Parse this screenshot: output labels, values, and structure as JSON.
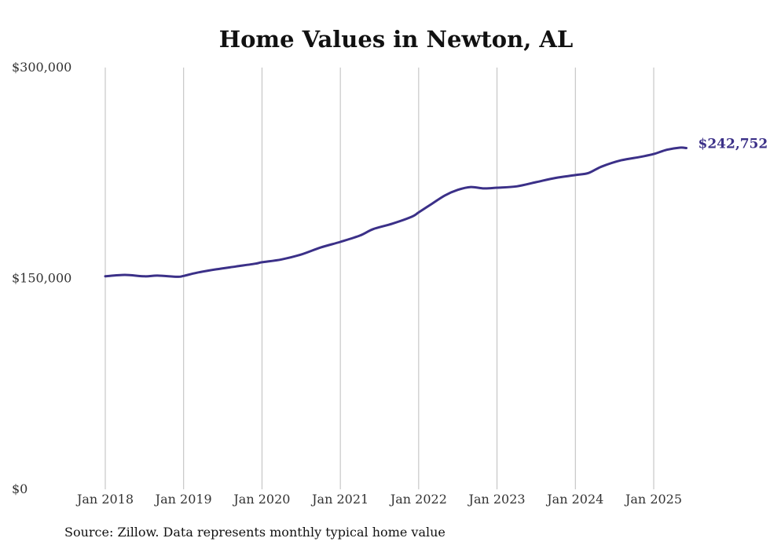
{
  "chart_data": {
    "type": "line",
    "title": "Home Values in Newton, AL",
    "xlabel": "",
    "ylabel": "",
    "source": "Source: Zillow. Data represents monthly typical home value",
    "ylim": [
      0,
      300000
    ],
    "yticks": [
      {
        "value": 0,
        "label": "$0"
      },
      {
        "value": 150000,
        "label": "$150,000"
      },
      {
        "value": 300000,
        "label": "$300,000"
      }
    ],
    "xticks": [
      {
        "value": "2018-01",
        "label": "Jan 2018"
      },
      {
        "value": "2019-01",
        "label": "Jan 2019"
      },
      {
        "value": "2020-01",
        "label": "Jan 2020"
      },
      {
        "value": "2021-01",
        "label": "Jan 2021"
      },
      {
        "value": "2022-01",
        "label": "Jan 2022"
      },
      {
        "value": "2023-01",
        "label": "Jan 2023"
      },
      {
        "value": "2024-01",
        "label": "Jan 2024"
      },
      {
        "value": "2025-01",
        "label": "Jan 2025"
      }
    ],
    "grid": {
      "vertical": true,
      "horizontal": false
    },
    "line_color": "#3b3088",
    "end_label": "$242,752",
    "series": [
      {
        "points": [
          [
            "2018-01",
            151500
          ],
          [
            "2018-04",
            152500
          ],
          [
            "2018-07",
            151500
          ],
          [
            "2018-09",
            152000
          ],
          [
            "2018-12",
            151200
          ],
          [
            "2019-01",
            151800
          ],
          [
            "2019-03",
            154000
          ],
          [
            "2019-06",
            156500
          ],
          [
            "2019-09",
            158500
          ],
          [
            "2019-12",
            160500
          ],
          [
            "2020-01",
            161500
          ],
          [
            "2020-04",
            163500
          ],
          [
            "2020-07",
            167000
          ],
          [
            "2020-10",
            172000
          ],
          [
            "2021-01",
            176000
          ],
          [
            "2021-04",
            180500
          ],
          [
            "2021-06",
            185000
          ],
          [
            "2021-09",
            189000
          ],
          [
            "2021-12",
            194000
          ],
          [
            "2022-01",
            197000
          ],
          [
            "2022-03",
            203000
          ],
          [
            "2022-05",
            209000
          ],
          [
            "2022-07",
            213000
          ],
          [
            "2022-09",
            215000
          ],
          [
            "2022-11",
            214000
          ],
          [
            "2023-01",
            214500
          ],
          [
            "2023-04",
            215500
          ],
          [
            "2023-07",
            218500
          ],
          [
            "2023-10",
            221500
          ],
          [
            "2024-01",
            223500
          ],
          [
            "2024-03",
            225000
          ],
          [
            "2024-05",
            229500
          ],
          [
            "2024-08",
            234000
          ],
          [
            "2024-11",
            236500
          ],
          [
            "2025-01",
            238500
          ],
          [
            "2025-03",
            241500
          ],
          [
            "2025-05",
            243000
          ],
          [
            "2025-06",
            242752
          ]
        ]
      }
    ]
  }
}
